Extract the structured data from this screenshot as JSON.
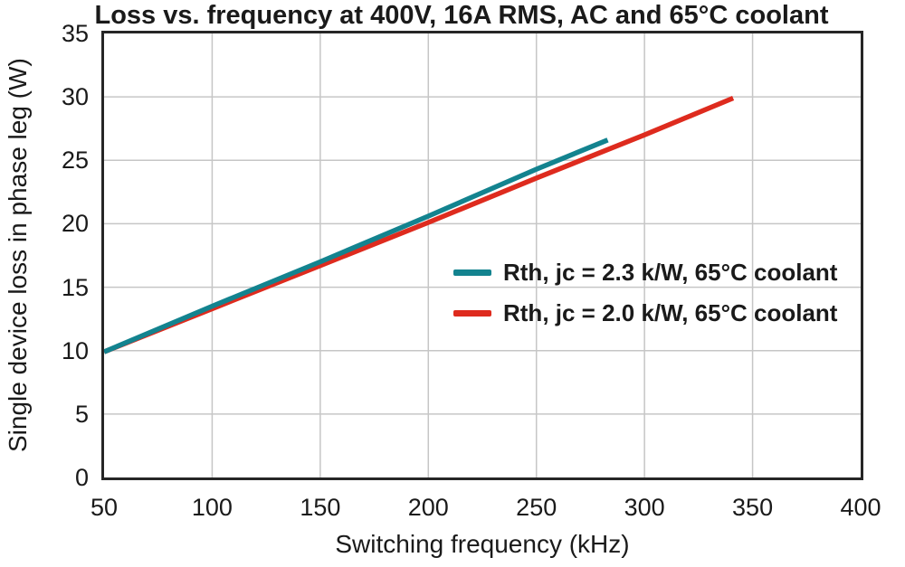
{
  "chart_data": {
    "type": "line",
    "title": "Loss vs. frequency at 400V, 16A RMS, AC and 65°C coolant",
    "xlabel": "Switching frequency (kHz)",
    "ylabel": "Single device loss in phase leg (W)",
    "xlim": [
      50,
      400
    ],
    "ylim": [
      0,
      35
    ],
    "x_ticks": [
      50,
      100,
      150,
      200,
      250,
      300,
      350,
      400
    ],
    "y_ticks": [
      0,
      5,
      10,
      15,
      20,
      25,
      30,
      35
    ],
    "grid": true,
    "legend_position": "center-right",
    "series": [
      {
        "name": "Rth, jc = 2.3 k/W, 65°C coolant",
        "color": "#13838F",
        "points": [
          [
            50,
            9.9
          ],
          [
            100,
            13.5
          ],
          [
            150,
            17.0
          ],
          [
            200,
            20.6
          ],
          [
            250,
            24.3
          ],
          [
            283,
            26.6
          ]
        ]
      },
      {
        "name": "Rth, jc = 2.0 k/W, 65°C coolant",
        "color": "#DE2B1E",
        "points": [
          [
            50,
            9.9
          ],
          [
            100,
            13.3
          ],
          [
            150,
            16.7
          ],
          [
            200,
            20.1
          ],
          [
            250,
            23.6
          ],
          [
            300,
            27.0
          ],
          [
            341,
            29.9
          ]
        ]
      }
    ]
  },
  "colors": {
    "background": "#ffffff",
    "grid": "#c6c6c6",
    "frame": "#262626",
    "text": "#1a1a1a"
  }
}
